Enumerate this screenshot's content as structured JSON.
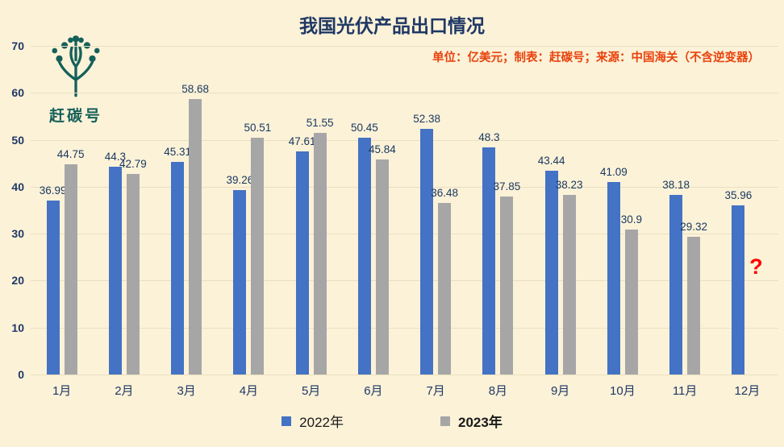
{
  "title": "我国光伏产品出口情况",
  "subtitle": "单位：亿美元；制表：赶碳号；来源：中国海关（不含逆变器）",
  "logo": {
    "icon": "tree-icon",
    "text": "赶碳号",
    "color": "#14605A"
  },
  "colors": {
    "background": "#FCF2D8",
    "series_2022": "#4472C4",
    "series_2023": "#A6A6A6",
    "title_text": "#1F3864",
    "subtitle_text": "#E8430E",
    "axis_text": "#1F3864",
    "gridline": "#E9DFBF",
    "question_mark": "#FF0000"
  },
  "chart_data": {
    "type": "bar",
    "title": "我国光伏产品出口情况",
    "unit": "亿美元",
    "categories": [
      "1月",
      "2月",
      "3月",
      "4月",
      "5月",
      "6月",
      "7月",
      "8月",
      "9月",
      "10月",
      "11月",
      "12月"
    ],
    "series": [
      {
        "name": "2022年",
        "color": "#4472C4",
        "values": [
          36.99,
          44.3,
          45.31,
          39.26,
          47.61,
          50.45,
          52.38,
          48.3,
          43.44,
          41.09,
          38.18,
          35.96
        ]
      },
      {
        "name": "2023年",
        "color": "#A6A6A6",
        "values": [
          44.75,
          42.79,
          58.68,
          50.51,
          51.55,
          45.84,
          36.48,
          37.85,
          38.23,
          30.9,
          29.32,
          null
        ]
      }
    ],
    "missing_label": "?",
    "ylim": [
      0,
      70
    ],
    "yticks": [
      0,
      10,
      20,
      30,
      40,
      50,
      60,
      70
    ],
    "grid": true,
    "legend_position": "bottom"
  },
  "legend": [
    {
      "label": "2022年",
      "color": "#4472C4",
      "bold": false
    },
    {
      "label": "2023年",
      "color": "#A6A6A6",
      "bold": true
    }
  ]
}
